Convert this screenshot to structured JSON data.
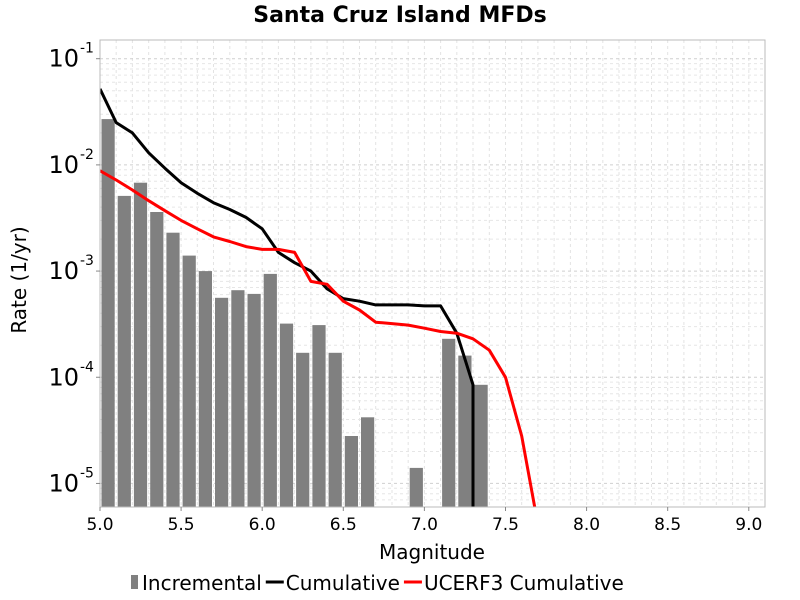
{
  "chart_data": {
    "type": "bar",
    "title": "Santa Cruz Island MFDs",
    "xlabel": "Magnitude",
    "ylabel": "Rate (1/yr)",
    "xlim": [
      5.0,
      9.1
    ],
    "ylim": [
      6e-06,
      0.15
    ],
    "yscale": "log",
    "grid": true,
    "legend_position": "bottom",
    "x_ticks": [
      "5.0",
      "5.5",
      "6.0",
      "6.5",
      "7.0",
      "7.5",
      "8.0",
      "8.5",
      "9.0"
    ],
    "y_ticks": [
      {
        "base": "10",
        "exp": "-5",
        "value": 1e-05
      },
      {
        "base": "10",
        "exp": "-4",
        "value": 0.0001
      },
      {
        "base": "10",
        "exp": "-3",
        "value": 0.001
      },
      {
        "base": "10",
        "exp": "-2",
        "value": 0.01
      },
      {
        "base": "10",
        "exp": "-1",
        "value": 0.1
      }
    ],
    "series": [
      {
        "name": "Incremental",
        "kind": "bar",
        "color": "#808080",
        "x": [
          5.05,
          5.15,
          5.25,
          5.35,
          5.45,
          5.55,
          5.65,
          5.75,
          5.85,
          5.95,
          6.05,
          6.15,
          6.25,
          6.35,
          6.45,
          6.55,
          6.65,
          6.95,
          7.15,
          7.25,
          7.35
        ],
        "values": [
          0.027,
          0.0051,
          0.0068,
          0.0036,
          0.0023,
          0.0014,
          0.001,
          0.00056,
          0.00066,
          0.00061,
          0.00094,
          0.00032,
          0.00017,
          0.00031,
          0.00017,
          2.8e-05,
          4.2e-05,
          1.4e-05,
          0.00023,
          0.00016,
          8.5e-05
        ]
      },
      {
        "name": "Cumulative",
        "kind": "line",
        "color": "#000000",
        "x": [
          5.0,
          5.1,
          5.2,
          5.3,
          5.4,
          5.5,
          5.6,
          5.7,
          5.8,
          5.9,
          6.0,
          6.1,
          6.2,
          6.3,
          6.4,
          6.5,
          6.6,
          6.7,
          6.8,
          6.9,
          7.0,
          7.1,
          7.2,
          7.3,
          7.3
        ],
        "values": [
          0.052,
          0.025,
          0.02,
          0.013,
          0.0093,
          0.0068,
          0.0054,
          0.0044,
          0.0038,
          0.0032,
          0.0025,
          0.0015,
          0.0012,
          0.001,
          0.00068,
          0.00055,
          0.00052,
          0.00048,
          0.00048,
          0.00048,
          0.00047,
          0.00047,
          0.00026,
          8.5e-05,
          6e-06
        ]
      },
      {
        "name": "UCERF3 Cumulative",
        "kind": "line",
        "color": "#ff0000",
        "x": [
          5.0,
          5.1,
          5.2,
          5.3,
          5.4,
          5.5,
          5.6,
          5.7,
          5.8,
          5.9,
          6.0,
          6.1,
          6.2,
          6.3,
          6.4,
          6.5,
          6.6,
          6.7,
          6.8,
          6.9,
          7.0,
          7.1,
          7.2,
          7.3,
          7.4,
          7.5,
          7.6,
          7.68
        ],
        "values": [
          0.0088,
          0.0072,
          0.0058,
          0.0046,
          0.0037,
          0.003,
          0.0025,
          0.0021,
          0.0019,
          0.0017,
          0.0016,
          0.0016,
          0.0015,
          0.0008,
          0.00075,
          0.00052,
          0.00043,
          0.00033,
          0.00032,
          0.00031,
          0.00029,
          0.00027,
          0.00026,
          0.00023,
          0.00018,
          0.0001,
          2.8e-05,
          6e-06
        ]
      }
    ]
  }
}
